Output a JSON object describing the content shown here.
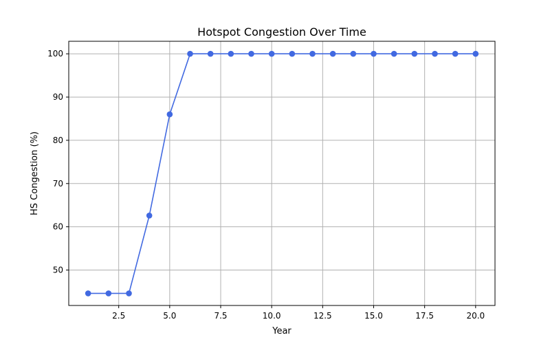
{
  "chart_data": {
    "type": "line",
    "title": "Hotspot Congestion Over Time",
    "xlabel": "Year",
    "ylabel": "HS Congestion (%)",
    "xlim": [
      0.05,
      20.95
    ],
    "ylim": [
      41.8,
      102.9
    ],
    "xticks": [
      2.5,
      5.0,
      7.5,
      10.0,
      12.5,
      15.0,
      17.5,
      20.0
    ],
    "xtick_labels": [
      "2.5",
      "5.0",
      "7.5",
      "10.0",
      "12.5",
      "15.0",
      "17.5",
      "20.0"
    ],
    "yticks": [
      50,
      60,
      70,
      80,
      90,
      100
    ],
    "ytick_labels": [
      "50",
      "60",
      "70",
      "80",
      "90",
      "100"
    ],
    "grid": true,
    "color": "#4169e1",
    "marker": "circle",
    "series": [
      {
        "x": [
          1,
          2,
          3,
          4,
          5,
          6,
          7,
          8,
          9,
          10,
          11,
          12,
          13,
          14,
          15,
          16,
          17,
          18,
          19,
          20
        ],
        "values": [
          44.6,
          44.6,
          44.6,
          62.6,
          86.0,
          100,
          100,
          100,
          100,
          100,
          100,
          100,
          100,
          100,
          100,
          100,
          100,
          100,
          100,
          100
        ]
      }
    ]
  }
}
